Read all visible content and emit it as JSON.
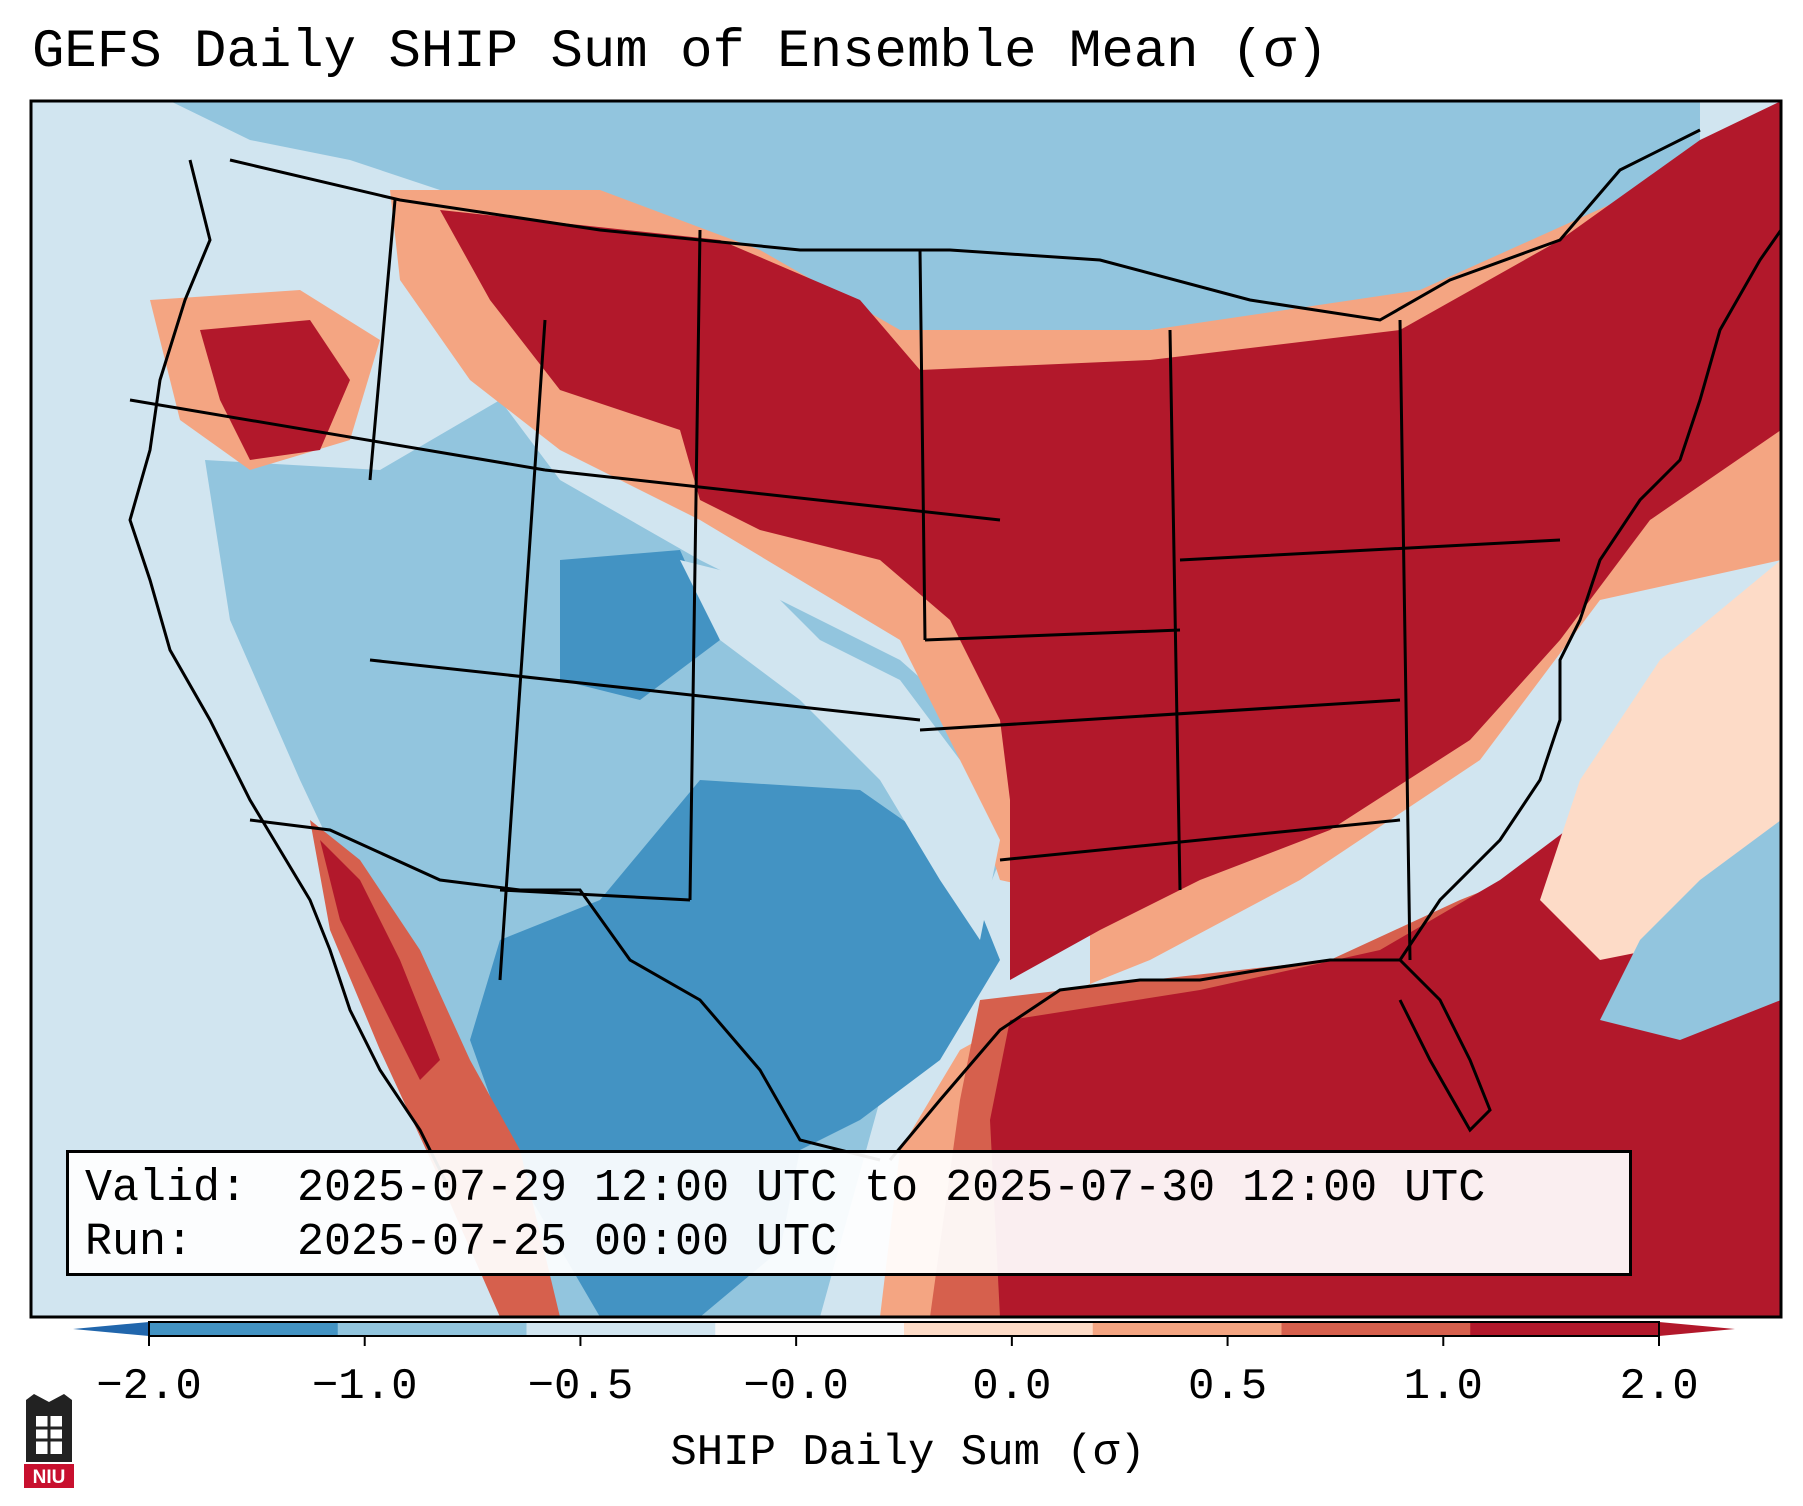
{
  "title": "GEFS Daily SHIP Sum of Ensemble Mean (σ)",
  "info": {
    "valid_key": "Valid:",
    "valid_value": "2025-07-29 12:00 UTC to 2025-07-30 12:00 UTC",
    "run_key": "Run:",
    "run_value": "2025-07-25 00:00 UTC"
  },
  "colorbar": {
    "label": "SHIP Daily Sum (σ)",
    "ticks": [
      "−2.0",
      "−1.0",
      "−0.5",
      "−0.0",
      "0.0",
      "0.5",
      "1.0",
      "2.0"
    ],
    "colors": [
      "#4393c3",
      "#92c5de",
      "#d1e5f0",
      "#f7f7f7",
      "#fddbc7",
      "#f4a582",
      "#d6604d",
      "#b2182b"
    ],
    "under_color": "#2166ac",
    "over_color": "#b2182b"
  },
  "logo": {
    "text": "NIU",
    "icon": "niu-castle-icon"
  },
  "colors": {
    "ocean": "#d1e5f0",
    "extreme_positive": "#b2182b",
    "strong_negative": "#4393c3"
  }
}
